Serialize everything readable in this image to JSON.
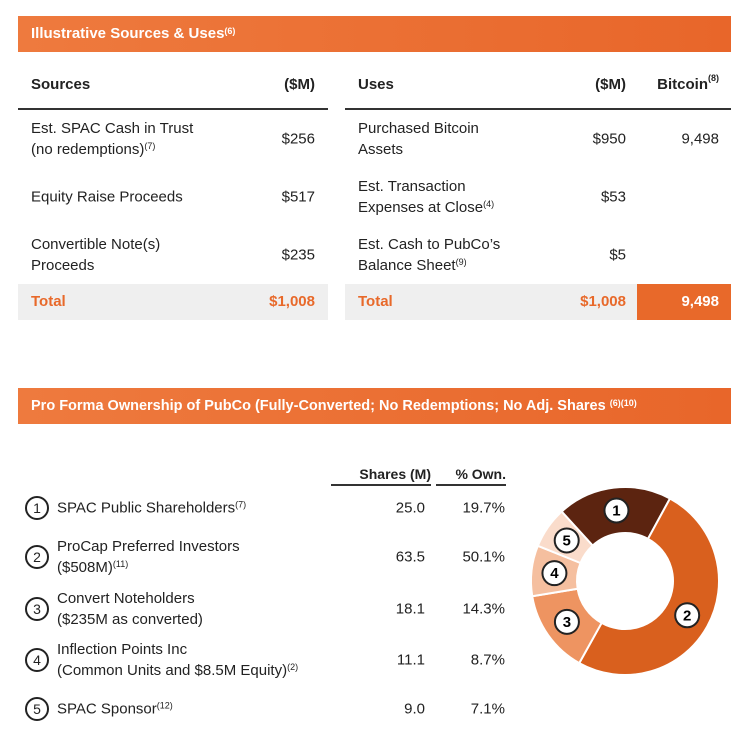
{
  "sources_uses": {
    "title": "Illustrative Sources & Uses",
    "title_sup": "(6)",
    "sources": {
      "header": "Sources",
      "col": "($M)",
      "rows": [
        {
          "label": "Est. SPAC Cash in Trust",
          "label2": "(no redemptions)",
          "sup": "(7)",
          "value": "$256"
        },
        {
          "label": "Equity Raise Proceeds",
          "label2": "",
          "sup": "",
          "value": "$517"
        },
        {
          "label": "Convertible Note(s)",
          "label2": "Proceeds",
          "sup": "",
          "value": "$235"
        }
      ],
      "total_label": "Total",
      "total_value": "$1,008"
    },
    "uses": {
      "header": "Uses",
      "col": "($M)",
      "col2": "Bitcoin",
      "col2_sup": "(8)",
      "rows": [
        {
          "label": "Purchased Bitcoin",
          "label2": "Assets",
          "sup": "",
          "value": "$950",
          "btc": "9,498"
        },
        {
          "label": "Est. Transaction",
          "label2": "Expenses at Close",
          "sup": "(4)",
          "value": "$53",
          "btc": ""
        },
        {
          "label": "Est. Cash to PubCo’s",
          "label2": "Balance Sheet",
          "sup": "(9)",
          "value": "$5",
          "btc": ""
        }
      ],
      "total_label": "Total",
      "total_value": "$1,008",
      "total_btc": "9,498"
    }
  },
  "ownership": {
    "title": "Pro Forma Ownership of PubCo (Fully-Converted; No Redemptions; No Adj. Shares",
    "title_sup": "(6)(10)",
    "col_shares": "Shares (M)",
    "col_own": "% Own.",
    "rows": [
      {
        "num": "1",
        "label": "SPAC Public Shareholders",
        "sup": "(7)",
        "label2": "",
        "sup2": "",
        "shares": "25.0",
        "own": "19.7%",
        "color": "#5c2410"
      },
      {
        "num": "2",
        "label": "ProCap Preferred Investors",
        "sup": "",
        "label2": "($508M)",
        "sup2": "(11)",
        "shares": "63.5",
        "own": "50.1%",
        "color": "#d9601e"
      },
      {
        "num": "3",
        "label": "Convert Noteholders",
        "sup": "",
        "label2": "($235M as converted)",
        "sup2": "",
        "shares": "18.1",
        "own": "14.3%",
        "color": "#ee9461"
      },
      {
        "num": "4",
        "label": "Inflection Points Inc",
        "sup": "",
        "label2": "(Common Units and $8.5M Equity)",
        "sup2": "(2)",
        "shares": "11.1",
        "own": "8.7%",
        "color": "#f5bf9f"
      },
      {
        "num": "5",
        "label": "SPAC Sponsor",
        "sup": "(12)",
        "label2": "",
        "sup2": "",
        "shares": "9.0",
        "own": "7.1%",
        "color": "#fadccb"
      }
    ]
  },
  "chart_data": {
    "type": "pie",
    "donut": true,
    "categories": [
      "1",
      "2",
      "3",
      "4",
      "5"
    ],
    "values": [
      19.7,
      50.1,
      14.3,
      8.7,
      7.1
    ]
  }
}
